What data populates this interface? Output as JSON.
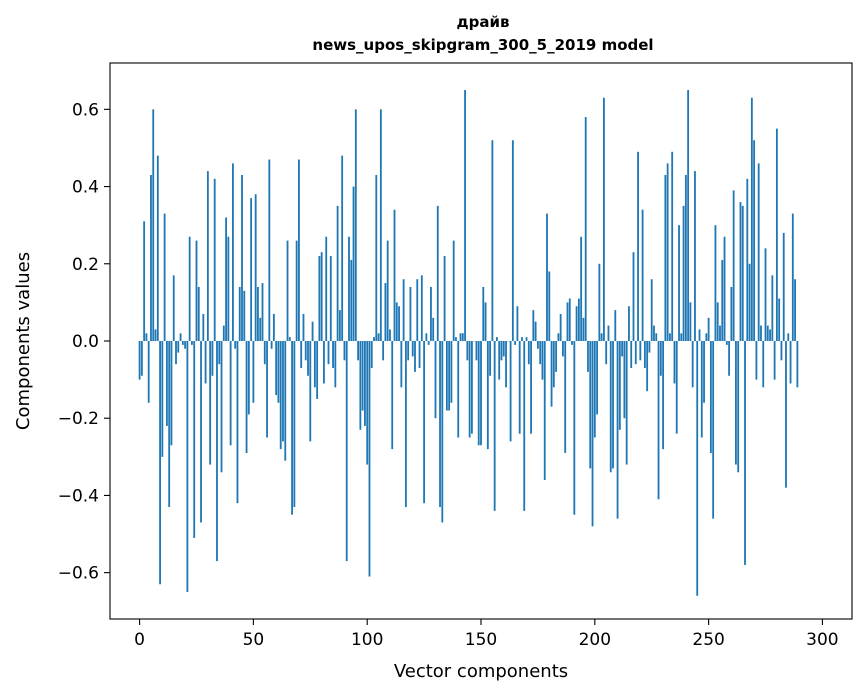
{
  "chart_data": {
    "type": "bar",
    "title": "драйв",
    "subtitle": "news_upos_skipgram_300_5_2019 model",
    "xlabel": "Vector components",
    "ylabel": "Components values",
    "xlim": [
      -13,
      313
    ],
    "ylim": [
      -0.72,
      0.72
    ],
    "x_ticks": [
      0,
      50,
      100,
      150,
      200,
      250,
      300
    ],
    "x_tick_labels": [
      "0",
      "50",
      "100",
      "150",
      "200",
      "250",
      "300"
    ],
    "y_ticks": [
      -0.6,
      -0.4,
      -0.2,
      0.0,
      0.2,
      0.4,
      0.6
    ],
    "y_tick_labels": [
      "−0.6",
      "−0.4",
      "−0.2",
      "0.0",
      "0.2",
      "0.4",
      "0.6"
    ],
    "grid": false,
    "bar_color": "#1f77b4",
    "values": [
      -0.1,
      -0.09,
      0.31,
      0.02,
      -0.16,
      0.43,
      0.6,
      0.03,
      0.48,
      -0.63,
      -0.3,
      0.33,
      -0.22,
      -0.43,
      -0.27,
      0.17,
      -0.06,
      -0.03,
      0.02,
      -0.01,
      -0.02,
      -0.65,
      0.27,
      -0.01,
      -0.51,
      0.26,
      0.14,
      -0.47,
      0.07,
      -0.11,
      0.44,
      -0.32,
      -0.09,
      0.42,
      -0.57,
      -0.06,
      -0.34,
      0.04,
      0.32,
      0.27,
      -0.27,
      0.46,
      -0.02,
      -0.42,
      0.14,
      0.43,
      0.13,
      -0.29,
      -0.19,
      0.37,
      -0.16,
      0.38,
      0.14,
      0.06,
      0.15,
      -0.06,
      -0.25,
      0.47,
      -0.02,
      0.07,
      -0.14,
      -0.16,
      -0.28,
      -0.26,
      -0.31,
      0.26,
      0.01,
      -0.45,
      -0.43,
      0.26,
      0.47,
      -0.07,
      0.07,
      -0.05,
      -0.09,
      -0.26,
      0.05,
      -0.12,
      -0.15,
      0.22,
      0.23,
      -0.11,
      0.27,
      -0.06,
      0.22,
      -0.07,
      -0.12,
      0.35,
      0.08,
      0.48,
      -0.05,
      -0.57,
      0.27,
      0.21,
      0.4,
      0.6,
      -0.05,
      -0.23,
      -0.18,
      -0.22,
      -0.32,
      -0.61,
      -0.07,
      0.01,
      0.43,
      0.02,
      0.6,
      -0.05,
      0.15,
      0.26,
      0.03,
      -0.28,
      0.34,
      0.1,
      0.09,
      -0.12,
      0.16,
      -0.43,
      -0.05,
      0.14,
      -0.04,
      -0.08,
      0.16,
      -0.07,
      0.17,
      -0.42,
      0.02,
      -0.01,
      0.14,
      0.06,
      -0.2,
      0.35,
      -0.43,
      -0.47,
      0.22,
      -0.18,
      -0.18,
      -0.16,
      0.26,
      0.01,
      -0.25,
      0.02,
      0.02,
      0.65,
      -0.05,
      -0.25,
      -0.24,
      0.0,
      -0.05,
      -0.27,
      -0.27,
      0.14,
      0.1,
      -0.28,
      -0.09,
      0.52,
      -0.44,
      0.01,
      -0.1,
      -0.05,
      -0.04,
      -0.12,
      0.0,
      -0.26,
      0.52,
      -0.01,
      0.09,
      -0.24,
      0.01,
      -0.44,
      0.01,
      -0.06,
      -0.24,
      0.08,
      0.05,
      -0.02,
      -0.06,
      -0.1,
      -0.36,
      0.33,
      0.18,
      -0.17,
      -0.12,
      -0.08,
      0.02,
      0.07,
      -0.04,
      -0.29,
      0.1,
      0.11,
      -0.01,
      -0.45,
      0.09,
      0.11,
      0.27,
      0.06,
      0.58,
      -0.08,
      -0.33,
      -0.48,
      -0.25,
      -0.19,
      0.2,
      0.02,
      0.63,
      -0.06,
      0.04,
      -0.34,
      -0.33,
      0.08,
      -0.46,
      -0.23,
      -0.04,
      -0.2,
      -0.32,
      0.09,
      -0.07,
      0.23,
      -0.06,
      0.49,
      -0.05,
      0.34,
      -0.07,
      -0.13,
      -0.03,
      0.16,
      0.04,
      0.02,
      -0.41,
      -0.09,
      -0.28,
      0.43,
      0.46,
      0.02,
      0.49,
      -0.11,
      -0.24,
      0.3,
      0.02,
      0.35,
      0.43,
      0.65,
      0.1,
      -0.12,
      0.44,
      -0.66,
      0.03,
      -0.25,
      -0.16,
      0.02,
      0.06,
      -0.29,
      -0.46,
      0.3,
      0.1,
      0.04,
      0.21,
      0.27,
      -0.01,
      -0.09,
      0.14,
      0.39,
      -0.32,
      -0.34,
      0.36,
      0.35,
      -0.58,
      0.42,
      0.2,
      0.63,
      0.52,
      -0.1,
      0.46,
      0.04,
      -0.12,
      0.24,
      0.04,
      0.03,
      0.17,
      -0.1,
      0.55,
      0.11,
      -0.05,
      0.28,
      -0.38,
      0.02,
      -0.11,
      0.33,
      0.16,
      -0.12
    ]
  }
}
